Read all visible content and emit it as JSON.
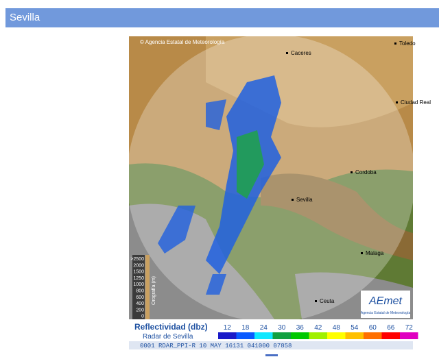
{
  "header": {
    "title": "Sevilla"
  },
  "radar": {
    "copyright": "© Agencia Estatal de Meteorología",
    "cities": [
      "Caceres",
      "Toledo",
      "Ciudad Real",
      "Cordoba",
      "Sevilla",
      "Malaga",
      "Ceuta"
    ],
    "orography": {
      "title": "Orografía (m)",
      "labels": [
        ">2500",
        "2000",
        "1500",
        "1250",
        "1000",
        "800",
        "600",
        "400",
        "200",
        "0"
      ]
    },
    "logo": {
      "name": "AEmet",
      "caption": "Agencia Estatal de Meteorología"
    },
    "legend": {
      "title": "Reflectividad (dbz)",
      "subtitle": "Radar de Sevilla",
      "levels": [
        12,
        18,
        24,
        30,
        36,
        42,
        48,
        54,
        60,
        66,
        72
      ],
      "colors": [
        "#1a1ac8",
        "#0a5aff",
        "#10e8ff",
        "#10a040",
        "#00c800",
        "#a0f000",
        "#ffff00",
        "#ffc000",
        "#ff7000",
        "#ff0000",
        "#e000c0"
      ]
    },
    "status": "0001 RDAR_PPI-R   10 MAY 16131 041000 07858"
  }
}
